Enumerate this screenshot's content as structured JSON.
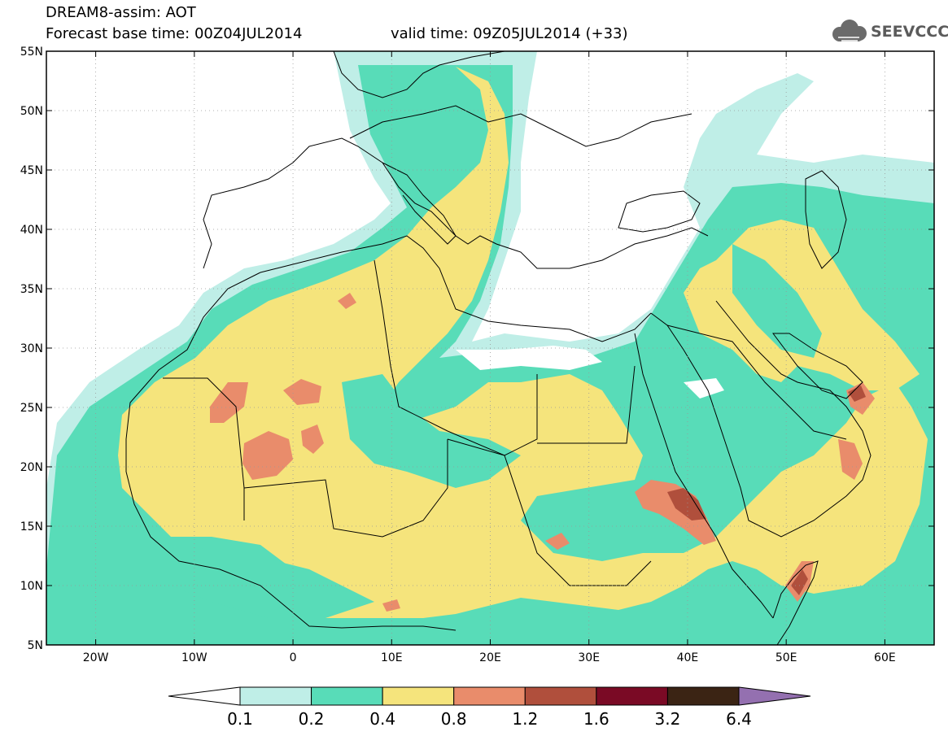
{
  "header": {
    "line1": "DREAM8-assim: AOT",
    "line2": "Forecast base time: 00Z04JUL2014",
    "line3": "valid time: 09Z05JUL2014 (+33)"
  },
  "logo": {
    "text": "SEEVCCC",
    "icon": "cloud-icon"
  },
  "map": {
    "lon_range": [
      -25,
      65
    ],
    "lat_range": [
      5,
      55
    ],
    "lon_ticks": [
      {
        "v": -20,
        "label": "20W"
      },
      {
        "v": -10,
        "label": "10W"
      },
      {
        "v": 0,
        "label": "0"
      },
      {
        "v": 10,
        "label": "10E"
      },
      {
        "v": 20,
        "label": "20E"
      },
      {
        "v": 30,
        "label": "30E"
      },
      {
        "v": 40,
        "label": "40E"
      },
      {
        "v": 50,
        "label": "50E"
      },
      {
        "v": 60,
        "label": "60E"
      }
    ],
    "lat_ticks": [
      {
        "v": 55,
        "label": "55N"
      },
      {
        "v": 50,
        "label": "50N"
      },
      {
        "v": 45,
        "label": "45N"
      },
      {
        "v": 40,
        "label": "40N"
      },
      {
        "v": 35,
        "label": "35N"
      },
      {
        "v": 30,
        "label": "30N"
      },
      {
        "v": 25,
        "label": "25N"
      },
      {
        "v": 20,
        "label": "20N"
      },
      {
        "v": 15,
        "label": "15N"
      },
      {
        "v": 10,
        "label": "10N"
      },
      {
        "v": 5,
        "label": "5N"
      }
    ],
    "gridlines": true
  },
  "colorbar": {
    "labels": [
      "0.1",
      "0.2",
      "0.4",
      "0.8",
      "1.2",
      "1.6",
      "3.2",
      "6.4"
    ],
    "colors": {
      "below": "#ffffff",
      "c01_02": "#bfeee7",
      "c02_04": "#58dcb8",
      "c04_08": "#f5e47c",
      "c08_12": "#e98c6b",
      "c12_16": "#b04f3c",
      "c16_32": "#7a0a25",
      "c32_64": "#3b2414",
      "above": "#9470b0"
    }
  }
}
